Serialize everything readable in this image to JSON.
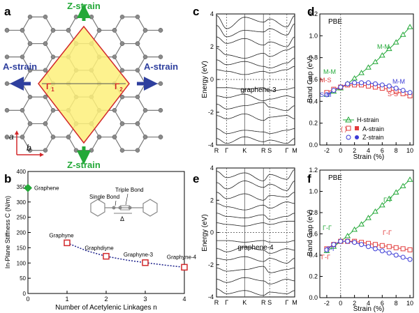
{
  "panels": {
    "a": {
      "letter": "a",
      "z_strain_top": "Z-strain",
      "z_strain_bottom": "Z-strain",
      "a_strain_left": "A-strain",
      "a_strain_right": "A-strain",
      "point_left": "Γ",
      "point_left_sub": "1",
      "point_right": "Γ",
      "point_right_sub": "2",
      "axis_a": "a",
      "axis_b": "b",
      "colors": {
        "rhombus_fill": "#fdf07a",
        "rhombus_edge": "#d2282b",
        "arrow_green": "#23a838",
        "arrow_blue": "#2e3f9e",
        "atom": "#888888"
      }
    },
    "b": {
      "letter": "b",
      "graphene_label": "Graphene",
      "single_bond": "Single Bond",
      "triple_bond": "Triple Bond",
      "delta": "Δ"
    },
    "c": {
      "letter": "c",
      "inner_label": "graphene-3"
    },
    "d": {
      "letter": "d",
      "method": "PBE"
    },
    "e": {
      "letter": "e",
      "inner_label": "graphene-4"
    },
    "f": {
      "letter": "f",
      "method": "PBE"
    }
  },
  "chart_data": [
    {
      "panel": "b",
      "type": "scatter",
      "xlabel": "Number of Acetylenic Linkages n",
      "ylabel": "In-Plane Stiffness C (N/m)",
      "xlim": [
        0,
        4
      ],
      "ylim": [
        0,
        400
      ],
      "xticks": [
        "0",
        "1",
        "2",
        "3",
        "4"
      ],
      "yticks": [
        "0",
        "50",
        "100",
        "150",
        "200",
        "250",
        "300",
        "350",
        "400"
      ],
      "series": [
        {
          "type": "scatter",
          "color": "#23a838",
          "marker": "diamond",
          "x": [
            0
          ],
          "y": [
            346
          ],
          "labels": [
            "Graphene"
          ]
        },
        {
          "type": "scatter",
          "color": "#d2282b",
          "marker": "square",
          "x": [
            1,
            2,
            3,
            4
          ],
          "y": [
            166,
            122,
            101,
            86
          ],
          "labels": [
            "Graphyne",
            "Graphdiyne",
            "Graphyne-3",
            "Graphyne-4"
          ]
        },
        {
          "type": "line",
          "color": "#1b1f8a",
          "style": "dotted",
          "x": [
            1,
            1.5,
            2,
            2.5,
            3,
            3.5,
            4
          ],
          "y": [
            166,
            140,
            122,
            110,
            101,
            93,
            86
          ]
        }
      ]
    },
    {
      "panel": "c",
      "type": "line",
      "ylabel": "Energy (eV)",
      "ylim": [
        -4,
        4
      ],
      "yticks": [
        "-4",
        "-2",
        "0",
        "2",
        "4"
      ],
      "kpoints": [
        "R",
        "Γ",
        "K",
        "R",
        "S",
        "Γ",
        "M"
      ],
      "kpos": [
        0,
        0.13,
        0.36,
        0.6,
        0.68,
        0.9,
        1.0
      ],
      "bands": [
        [
          3.9,
          3.1,
          3.8,
          3.5,
          3.7,
          3.2,
          3.9
        ],
        [
          3.3,
          2.6,
          3.0,
          2.9,
          3.1,
          2.7,
          3.4
        ],
        [
          2.6,
          2.2,
          2.5,
          2.1,
          2.3,
          2.0,
          2.6
        ],
        [
          1.9,
          1.5,
          1.3,
          1.6,
          1.4,
          1.8,
          2.0
        ],
        [
          1.2,
          0.9,
          1.1,
          0.8,
          0.7,
          1.0,
          1.3
        ],
        [
          0.6,
          0.5,
          0.3,
          0.5,
          0.4,
          0.6,
          0.8
        ],
        [
          -0.5,
          -0.5,
          -0.6,
          -0.5,
          -0.7,
          -0.6,
          -0.5
        ],
        [
          -1.0,
          -1.1,
          -0.9,
          -1.3,
          -1.2,
          -1.0,
          -1.1
        ],
        [
          -1.5,
          -1.8,
          -1.6,
          -1.4,
          -1.7,
          -1.9,
          -1.6
        ],
        [
          -2.2,
          -2.4,
          -2.1,
          -2.5,
          -2.3,
          -2.2,
          -2.4
        ],
        [
          -3.0,
          -3.3,
          -3.1,
          -3.2,
          -3.3,
          -3.1,
          -3.0
        ],
        [
          -3.6,
          -3.9,
          -3.5,
          -3.8,
          -3.7,
          -3.9,
          -3.6
        ]
      ]
    },
    {
      "panel": "d",
      "type": "line",
      "xlabel": "Strain (%)",
      "ylabel": "Band Gap (eV)",
      "xlim": [
        -3,
        10.5
      ],
      "ylim": [
        0,
        1.2
      ],
      "xticks": [
        "-2",
        "0",
        "2",
        "4",
        "6",
        "8",
        "10"
      ],
      "yticks": [
        "0.0",
        "0.2",
        "0.4",
        "0.6",
        "0.8",
        "1.0",
        "1.2"
      ],
      "legend": [
        "H-strain",
        "A-strain",
        "Z-strain"
      ],
      "legend_position": "bottom-right",
      "annotations": [
        "M-M",
        "M-M",
        "M-S",
        "S-M",
        "M-M",
        "S-S"
      ],
      "series": [
        {
          "name": "H-strain",
          "color": "#23a838",
          "marker": "triangle",
          "x": [
            -2,
            -1,
            0,
            1,
            2,
            3,
            4,
            5,
            6,
            7,
            8,
            9,
            10
          ],
          "y": [
            0.46,
            0.49,
            0.52,
            0.56,
            0.61,
            0.66,
            0.71,
            0.76,
            0.82,
            0.88,
            0.94,
            1.01,
            1.08
          ]
        },
        {
          "name": "A-strain",
          "color": "#e23b3b",
          "marker": "square",
          "x": [
            -2,
            -1,
            0,
            1,
            2,
            3,
            4,
            5,
            6,
            7,
            8,
            9,
            10
          ],
          "y": [
            0.48,
            0.51,
            0.53,
            0.55,
            0.55,
            0.55,
            0.54,
            0.53,
            0.52,
            0.51,
            0.49,
            0.47,
            0.45
          ]
        },
        {
          "name": "Z-strain",
          "color": "#3b3bd6",
          "marker": "circle",
          "x": [
            -2,
            -1,
            0,
            1,
            2,
            3,
            4,
            5,
            6,
            7,
            8,
            9,
            10
          ],
          "y": [
            0.46,
            0.5,
            0.53,
            0.56,
            0.57,
            0.57,
            0.57,
            0.56,
            0.55,
            0.54,
            0.52,
            0.5,
            0.48
          ]
        }
      ]
    },
    {
      "panel": "e",
      "type": "line",
      "ylabel": "Energy (eV)",
      "ylim": [
        -4,
        4
      ],
      "yticks": [
        "-4",
        "-2",
        "0",
        "2",
        "4"
      ],
      "kpoints": [
        "R",
        "Γ",
        "K",
        "R",
        "S",
        "Γ",
        "M"
      ],
      "kpos": [
        0,
        0.13,
        0.36,
        0.6,
        0.68,
        0.9,
        1.0
      ],
      "bands": [
        [
          3.8,
          3.4,
          3.7,
          3.2,
          3.6,
          3.3,
          3.9
        ],
        [
          3.1,
          2.7,
          3.2,
          2.8,
          3.0,
          2.6,
          3.2
        ],
        [
          2.5,
          2.1,
          2.4,
          2.0,
          2.3,
          2.2,
          2.5
        ],
        [
          1.8,
          1.6,
          1.4,
          1.7,
          1.5,
          1.9,
          1.8
        ],
        [
          1.2,
          1.0,
          0.9,
          1.1,
          0.8,
          1.0,
          1.2
        ],
        [
          0.6,
          0.5,
          0.4,
          0.6,
          0.5,
          0.7,
          0.7
        ],
        [
          -0.5,
          -0.5,
          -0.6,
          -0.5,
          -0.6,
          -0.6,
          -0.5
        ],
        [
          -1.0,
          -1.2,
          -0.9,
          -1.1,
          -1.3,
          -1.0,
          -1.1
        ],
        [
          -1.6,
          -1.7,
          -1.5,
          -1.8,
          -1.6,
          -1.9,
          -1.6
        ],
        [
          -2.2,
          -2.4,
          -2.3,
          -2.1,
          -2.5,
          -2.3,
          -2.2
        ],
        [
          -2.9,
          -3.1,
          -2.8,
          -3.0,
          -3.2,
          -2.9,
          -3.0
        ],
        [
          -3.5,
          -3.8,
          -3.6,
          -3.9,
          -3.7,
          -3.8,
          -3.6
        ]
      ]
    },
    {
      "panel": "f",
      "type": "line",
      "xlabel": "Strain (%)",
      "ylabel": "Band Gap (eV)",
      "xlim": [
        -3,
        10.5
      ],
      "ylim": [
        0,
        1.2
      ],
      "xticks": [
        "-2",
        "0",
        "2",
        "4",
        "6",
        "8",
        "10"
      ],
      "yticks": [
        "0.0",
        "0.2",
        "0.4",
        "0.6",
        "0.8",
        "1.0",
        "1.2"
      ],
      "annotations": [
        "Γ-Γ",
        "Γ-Γ",
        "Γ-Γ",
        "Γ-Γ",
        "Γ-Γ"
      ],
      "series": [
        {
          "color": "#23a838",
          "marker": "triangle",
          "x": [
            -2,
            -1,
            0,
            1,
            2,
            3,
            4,
            5,
            6,
            7,
            8,
            9,
            10
          ],
          "y": [
            0.44,
            0.48,
            0.53,
            0.58,
            0.64,
            0.69,
            0.75,
            0.81,
            0.87,
            0.93,
            0.99,
            1.05,
            1.11
          ]
        },
        {
          "color": "#e23b3b",
          "marker": "square",
          "x": [
            -2,
            -1,
            0,
            1,
            2,
            3,
            4,
            5,
            6,
            7,
            8,
            9,
            10
          ],
          "y": [
            0.46,
            0.5,
            0.53,
            0.53,
            0.53,
            0.52,
            0.51,
            0.5,
            0.49,
            0.48,
            0.47,
            0.46,
            0.45
          ]
        },
        {
          "color": "#3b3bd6",
          "marker": "circle",
          "x": [
            -2,
            -1,
            0,
            1,
            2,
            3,
            4,
            5,
            6,
            7,
            8,
            9,
            10
          ],
          "y": [
            0.45,
            0.5,
            0.53,
            0.53,
            0.52,
            0.5,
            0.48,
            0.46,
            0.44,
            0.42,
            0.4,
            0.38,
            0.36
          ]
        }
      ]
    }
  ]
}
